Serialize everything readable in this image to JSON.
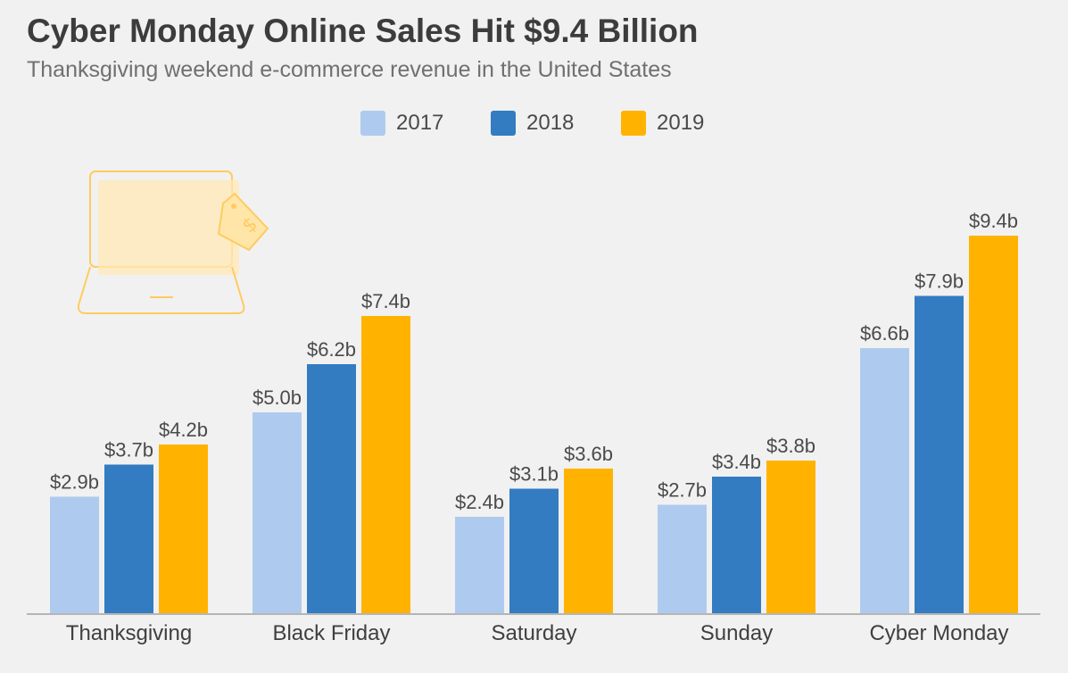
{
  "chart_data": {
    "type": "bar",
    "title": "Cyber Monday Online Sales Hit $9.4 Billion",
    "subtitle": "Thanksgiving weekend e-commerce revenue in the United States",
    "categories": [
      "Thanksgiving",
      "Black Friday",
      "Saturday",
      "Sunday",
      "Cyber Monday"
    ],
    "series": [
      {
        "name": "2017",
        "color": "#aecbef",
        "values": [
          2.9,
          5.0,
          2.4,
          2.7,
          6.6
        ],
        "labels": [
          "$2.9b",
          "$5.0b",
          "$2.4b",
          "$2.7b",
          "$6.6b"
        ]
      },
      {
        "name": "2018",
        "color": "#337cc1",
        "values": [
          3.7,
          6.2,
          3.1,
          3.4,
          7.9
        ],
        "labels": [
          "$3.7b",
          "$6.2b",
          "$3.1b",
          "$3.4b",
          "$7.9b"
        ]
      },
      {
        "name": "2019",
        "color": "#ffb300",
        "values": [
          4.2,
          7.4,
          3.6,
          3.8,
          9.4
        ],
        "labels": [
          "$4.2b",
          "$7.4b",
          "$3.6b",
          "$3.8b",
          "$9.4b"
        ]
      }
    ],
    "xlabel": "",
    "ylabel": "",
    "ylim": [
      0,
      10
    ],
    "grid": false,
    "legend_position": "top-center"
  },
  "decoration": {
    "icon": "laptop-price-tag-icon",
    "icon_color": "#ffca5a"
  }
}
